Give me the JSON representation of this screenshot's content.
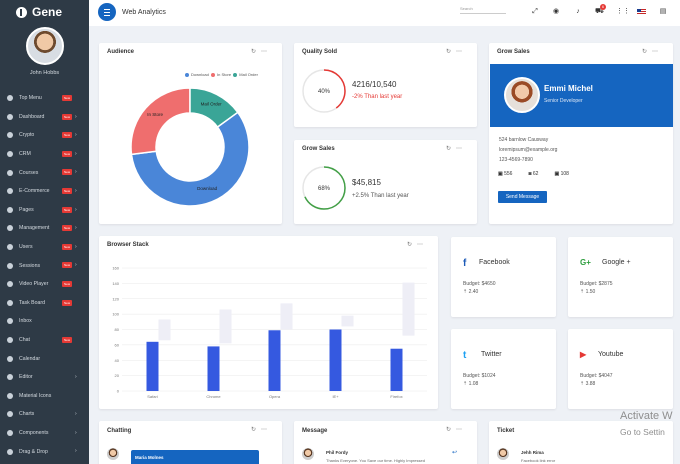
{
  "sidebar": {
    "brand": "Gene",
    "profile_name": "John Hobbs",
    "items": [
      {
        "label": "Top Menu",
        "badge": "New",
        "chevron": ""
      },
      {
        "label": "Dashboard",
        "badge": "New",
        "chevron": "›"
      },
      {
        "label": "Crypto",
        "badge": "New",
        "chevron": "›"
      },
      {
        "label": "CRM",
        "badge": "New",
        "chevron": "›"
      },
      {
        "label": "Courses",
        "badge": "New",
        "chevron": "›"
      },
      {
        "label": "E-Commerce",
        "badge": "New",
        "chevron": "›"
      },
      {
        "label": "Pages",
        "badge": "New",
        "chevron": "›"
      },
      {
        "label": "Management",
        "badge": "New",
        "chevron": "›"
      },
      {
        "label": "Users",
        "badge": "New",
        "chevron": "›"
      },
      {
        "label": "Sessions",
        "badge": "New",
        "chevron": "›"
      },
      {
        "label": "Video Player",
        "badge": "New",
        "chevron": ""
      },
      {
        "label": "Task Board",
        "badge": "New",
        "chevron": ""
      },
      {
        "label": "Inbox",
        "badge": "",
        "chevron": ""
      },
      {
        "label": "Chat",
        "badge": "New",
        "chevron": ""
      },
      {
        "label": "Calendar",
        "badge": "",
        "chevron": ""
      },
      {
        "label": "Editor",
        "badge": "",
        "chevron": "›"
      },
      {
        "label": "Material Icons",
        "badge": "",
        "chevron": ""
      },
      {
        "label": "Charts",
        "badge": "",
        "chevron": "›"
      },
      {
        "label": "Components",
        "badge": "",
        "chevron": "›"
      },
      {
        "label": "Drag & Drop",
        "badge": "",
        "chevron": "›"
      }
    ]
  },
  "topbar": {
    "title": "Web Analytics",
    "search_placeholder": "Search",
    "cart_count": "6",
    "icons": [
      "fullscreen-icon",
      "user-icon",
      "bell-icon",
      "cart-icon",
      "apps-icon",
      "flag-icon",
      "chat-icon"
    ]
  },
  "audience": {
    "title": "Audience",
    "legend": [
      "Download",
      "In Store",
      "Mail Order"
    ],
    "slices": [
      {
        "label": "Download",
        "value": 58,
        "color": "#4a86d8"
      },
      {
        "label": "In Store",
        "value": 27,
        "color": "#ef6e6e"
      },
      {
        "label": "Mail Order",
        "value": 15,
        "color": "#3aa597"
      }
    ]
  },
  "quality": {
    "title": "Quality Sold",
    "percent": "40%",
    "percent_value": 40,
    "value": "4216/10,540",
    "change": "-2% Than last year",
    "color": "#e53935"
  },
  "grow_small": {
    "title": "Grow Sales",
    "percent": "68%",
    "percent_value": 68,
    "value": "$45,815",
    "change": "+2.5% Than last year",
    "color": "#43a047"
  },
  "grow_profile": {
    "title": "Grow Sales",
    "name": "Emmi Michel",
    "role": "Senior Developer",
    "address": "524 barnlow Causway",
    "email": "loremipsum@example.org",
    "phone": "123-4569-7890",
    "fb_count": "556",
    "ig_count": "62",
    "tw_count": "108",
    "button": "Send Message"
  },
  "browser": {
    "title": "Browser Stack"
  },
  "chart_data": {
    "type": "bar",
    "title": "Browser Stack",
    "categories": [
      "Safari",
      "Chrome",
      "Opera",
      "IE+",
      "Firefox"
    ],
    "ylim": [
      0,
      160
    ],
    "yticks": [
      "0",
      "20",
      "40",
      "60",
      "80",
      "100",
      "120",
      "140",
      "160"
    ],
    "series": [
      {
        "values": [
          64,
          58,
          79,
          80,
          55
        ],
        "color": "#3559e0"
      },
      {
        "range": [
          [
            66,
            93
          ],
          [
            62,
            106
          ],
          [
            80,
            114
          ],
          [
            84,
            98
          ],
          [
            72,
            141
          ]
        ],
        "color": "#eeeef6"
      }
    ],
    "grid": true
  },
  "social": [
    {
      "name": "Facebook",
      "icon": "f",
      "budget": "Budget: $4650",
      "count": "⇡ 2.40",
      "color": "#1e5bb8"
    },
    {
      "name": "Google +",
      "icon": "G+",
      "budget": "Budget: $2875",
      "count": "⇡ 1.50",
      "color": "#2e9e3e"
    },
    {
      "name": "Twitter",
      "icon": "t",
      "budget": "Budget: $1024",
      "count": "⇡ 1.08",
      "color": "#1da1f2"
    },
    {
      "name": "Youtube",
      "icon": "▶",
      "budget": "Budget: $4047",
      "count": "⇡ 3.88",
      "color": "#e53935"
    }
  ],
  "bottom": {
    "chat_title": "Chatting",
    "chat_name": "Maria Molnes",
    "message_title": "Message",
    "message_name": "Phil Fordy",
    "message_text": "Thanks Everyone. You Save our time. Highly Impressed",
    "ticket_title": "Ticket",
    "ticket_name": "Jehh Rima",
    "ticket_text": "Facebook link error"
  },
  "watermark": {
    "line1": "Activate W",
    "line2": "Go to Settin"
  }
}
